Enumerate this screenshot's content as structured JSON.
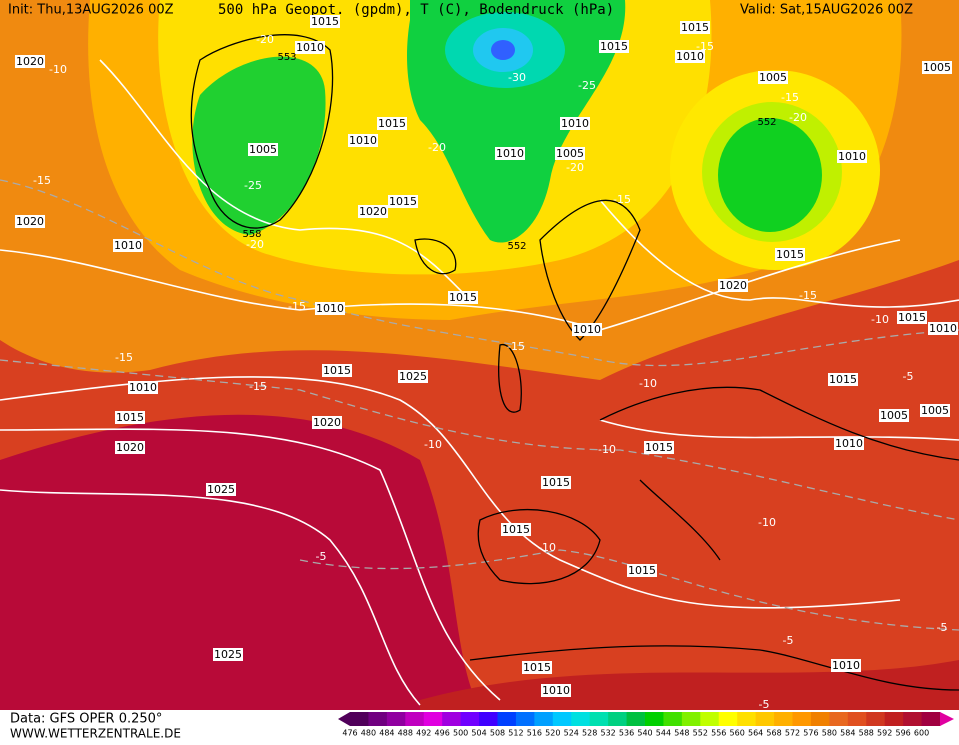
{
  "header": {
    "init": "Init: Thu,13AUG2026 00Z",
    "title": "500 hPa Geopot. (gpdm), T (C), Bodendruck (hPa)",
    "valid": "Valid: Sat,15AUG2026 00Z"
  },
  "footer": {
    "data": "Data: GFS OPER 0.250°",
    "site": "WWW.WETTERZENTRALE.DE"
  },
  "colorbar": {
    "ticks": [
      476,
      480,
      484,
      488,
      492,
      496,
      500,
      504,
      508,
      512,
      516,
      520,
      524,
      528,
      532,
      536,
      540,
      544,
      548,
      552,
      556,
      560,
      564,
      568,
      572,
      576,
      580,
      584,
      588,
      592,
      596,
      600
    ],
    "colors": [
      "#50005a",
      "#700080",
      "#9000a0",
      "#c000c0",
      "#e000e0",
      "#a000e0",
      "#7000ff",
      "#4000ff",
      "#0040ff",
      "#0070ff",
      "#00a0ff",
      "#00c8ff",
      "#00e0e0",
      "#00e0b0",
      "#00d080",
      "#00c040",
      "#00d000",
      "#40e000",
      "#80f000",
      "#c0ff00",
      "#ffff00",
      "#ffe000",
      "#ffc800",
      "#ffb000",
      "#ff9800",
      "#f08000",
      "#e86820",
      "#e05020",
      "#d03820",
      "#c02020",
      "#b01030",
      "#a00040"
    ]
  },
  "isobar_labels": [
    1015,
    1010,
    1020,
    1015,
    1015,
    1010,
    1005,
    1005,
    1015,
    1010,
    1005,
    1010,
    1010,
    1005,
    1010,
    1015,
    1020,
    1020,
    1010,
    1015,
    1020,
    1015,
    1010,
    1010,
    1015,
    1010,
    1015,
    1025,
    1015,
    1010,
    1015,
    1020,
    1005,
    1005,
    1020,
    1015,
    1010,
    1015,
    1025,
    1015,
    1015,
    1025,
    1010,
    1015,
    1010
  ],
  "temperature_labels": [
    "-20",
    "-10",
    "-30",
    "-25",
    "-15",
    "-15",
    "-20",
    "-20",
    "-20",
    "-15",
    "-25",
    "-20",
    "-15",
    "-15",
    "-15",
    "-10",
    "-15",
    "-15",
    "-15",
    "-5",
    "-10",
    "-10",
    "-10",
    "-10",
    "-10",
    "-5",
    "-5",
    "-5",
    "-5"
  ],
  "geopotential_labels": [
    "552",
    "552",
    "558",
    "553"
  ]
}
